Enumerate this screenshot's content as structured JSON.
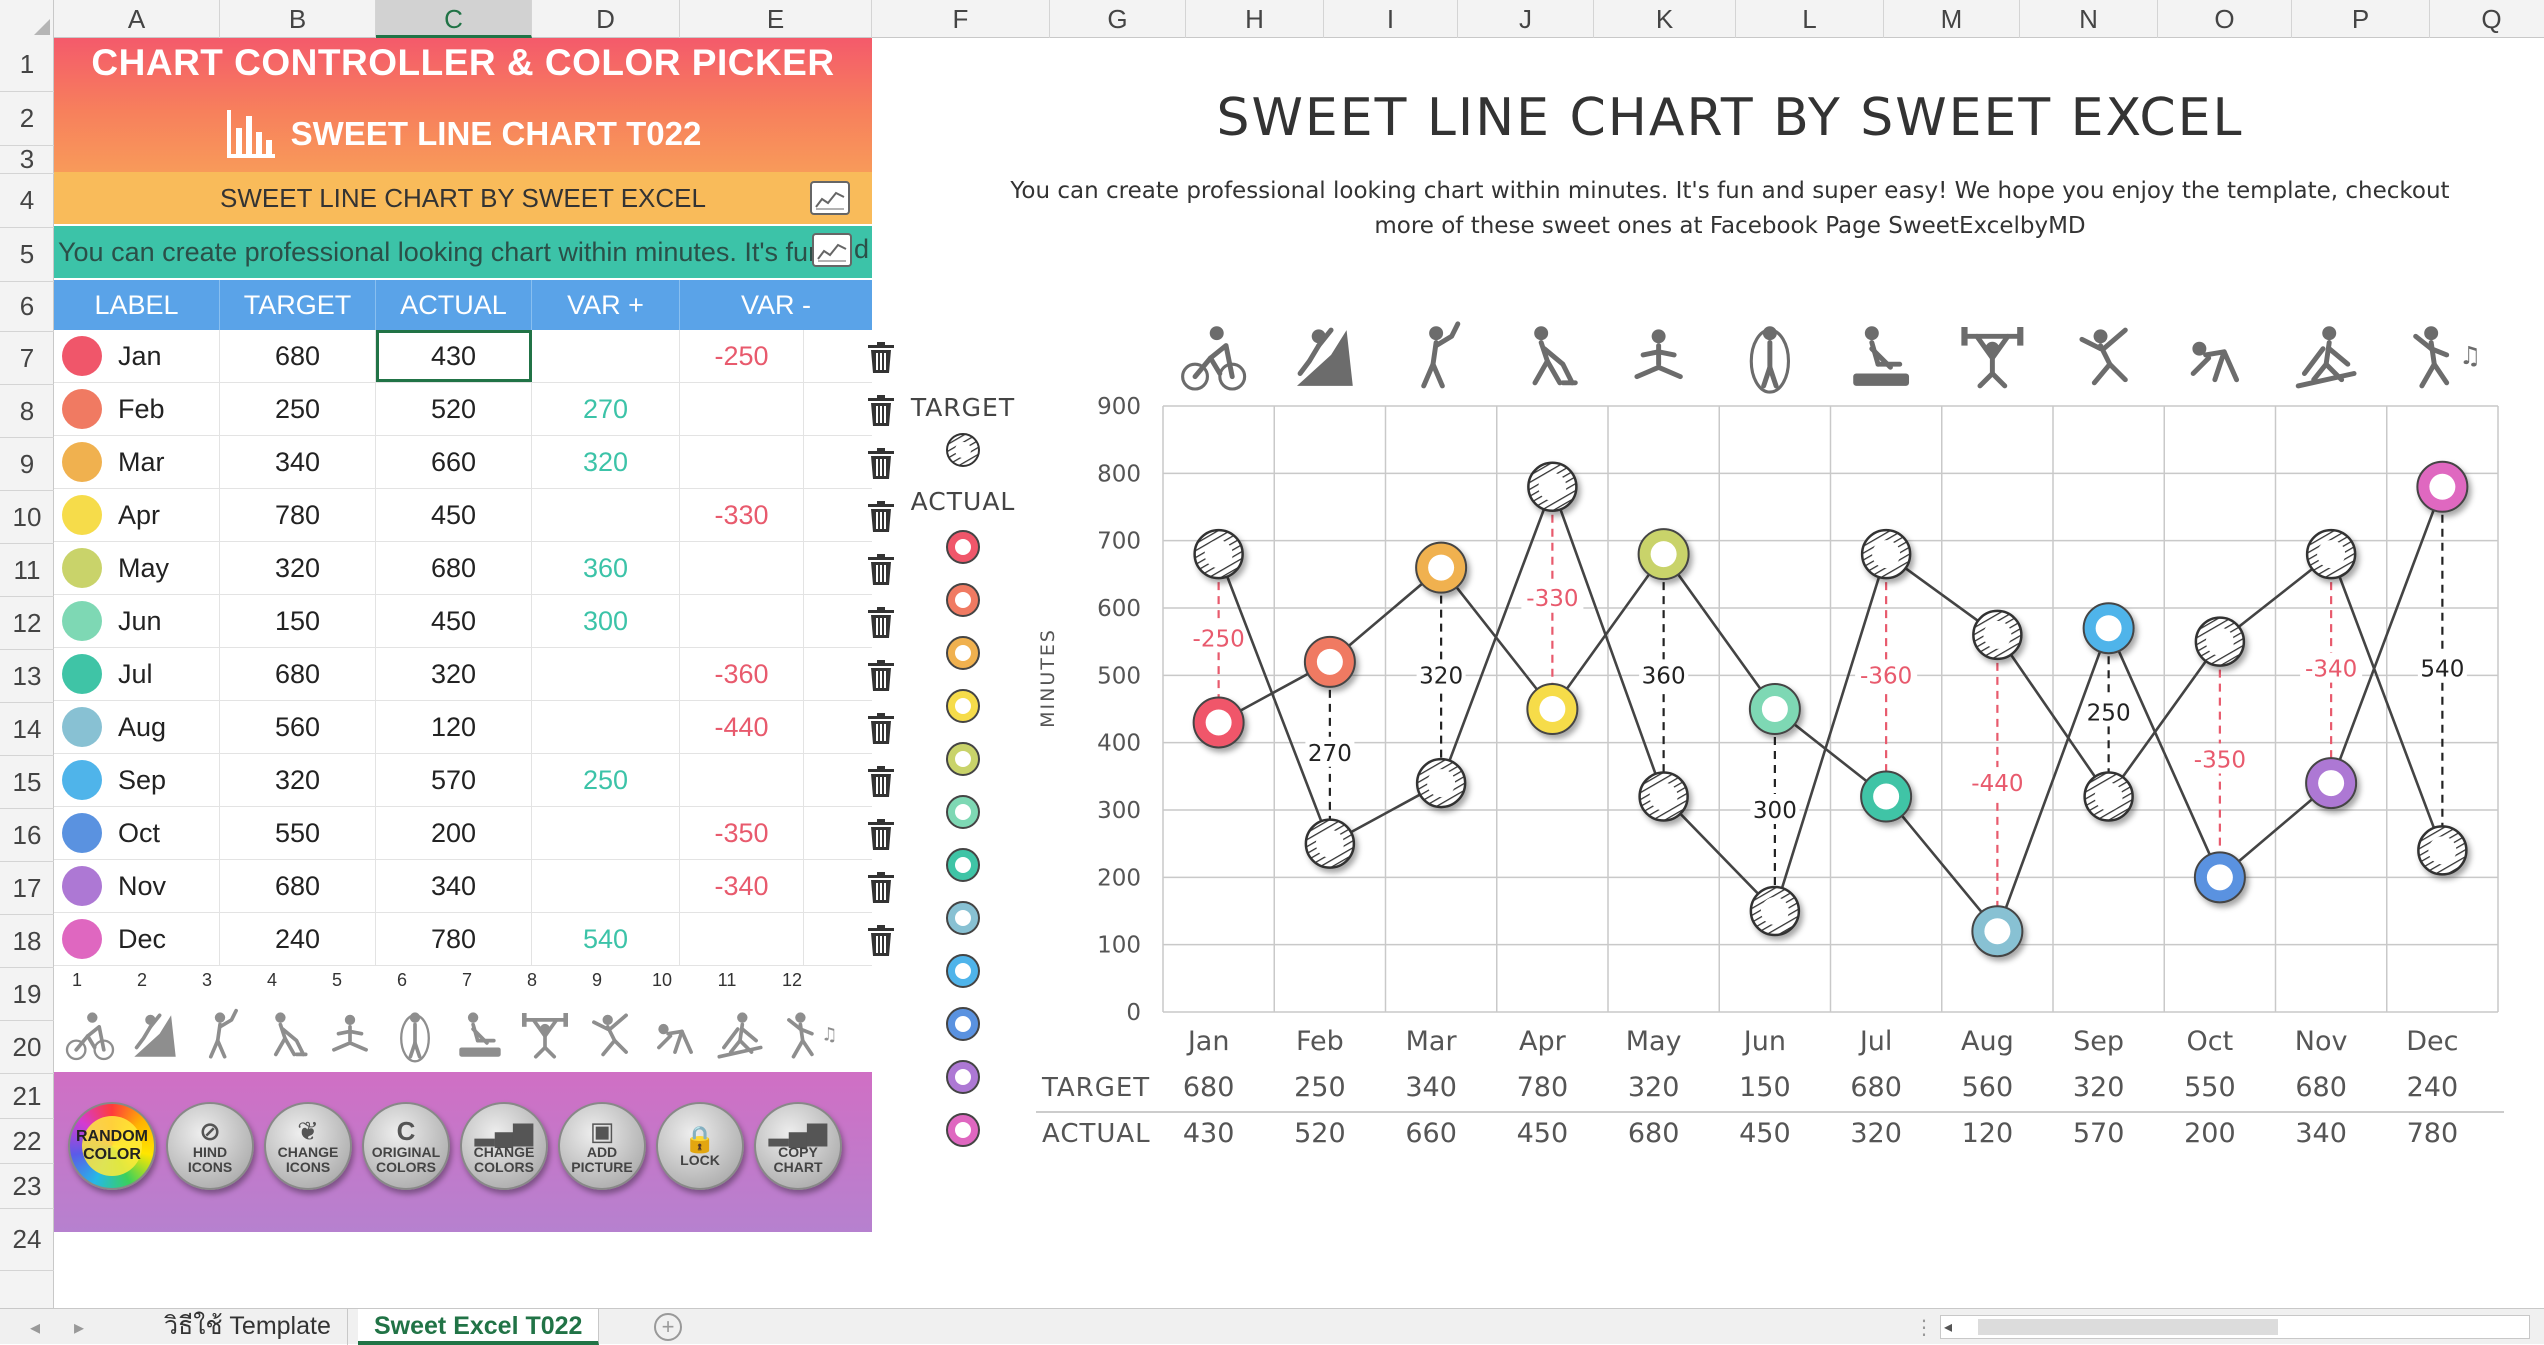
{
  "columns": [
    "A",
    "B",
    "C",
    "D",
    "E",
    "F",
    "G",
    "H",
    "I",
    "J",
    "K",
    "L",
    "M",
    "N",
    "O",
    "P",
    "Q"
  ],
  "selected_column": "C",
  "rows": [
    "1",
    "2",
    "3",
    "4",
    "5",
    "6",
    "7",
    "8",
    "9",
    "10",
    "11",
    "12",
    "13",
    "14",
    "15",
    "16",
    "17",
    "18",
    "19",
    "20",
    "21",
    "22",
    "23",
    "24"
  ],
  "controller": {
    "banner_title": "CHART CONTROLLER & COLOR PICKER",
    "banner_subtitle": "SWEET LINE CHART T022",
    "title_input": "SWEET LINE CHART BY SWEET EXCEL",
    "desc_input": "You can create professional looking chart within minutes. It's fun",
    "desc_tail": "d"
  },
  "table": {
    "headers": [
      "LABEL",
      "TARGET",
      "ACTUAL",
      "VAR +",
      "VAR -"
    ],
    "rows": [
      {
        "label": "Jan",
        "target": "680",
        "actual": "430",
        "var_pos": "",
        "var_neg": "-250",
        "color": "#f0566a"
      },
      {
        "label": "Feb",
        "target": "250",
        "actual": "520",
        "var_pos": "270",
        "var_neg": "",
        "color": "#f07a62"
      },
      {
        "label": "Mar",
        "target": "340",
        "actual": "660",
        "var_pos": "320",
        "var_neg": "",
        "color": "#f0b14f"
      },
      {
        "label": "Apr",
        "target": "780",
        "actual": "450",
        "var_pos": "",
        "var_neg": "-330",
        "color": "#f6dc4a"
      },
      {
        "label": "May",
        "target": "320",
        "actual": "680",
        "var_pos": "360",
        "var_neg": "",
        "color": "#c9d36a"
      },
      {
        "label": "Jun",
        "target": "150",
        "actual": "450",
        "var_pos": "300",
        "var_neg": "",
        "color": "#7ed8b4"
      },
      {
        "label": "Jul",
        "target": "680",
        "actual": "320",
        "var_pos": "",
        "var_neg": "-360",
        "color": "#3fc4a6"
      },
      {
        "label": "Aug",
        "target": "560",
        "actual": "120",
        "var_pos": "",
        "var_neg": "-440",
        "color": "#88c1d3"
      },
      {
        "label": "Sep",
        "target": "320",
        "actual": "570",
        "var_pos": "250",
        "var_neg": "",
        "color": "#4fb4ea"
      },
      {
        "label": "Oct",
        "target": "550",
        "actual": "200",
        "var_pos": "",
        "var_neg": "-350",
        "color": "#5a92e0"
      },
      {
        "label": "Nov",
        "target": "680",
        "actual": "340",
        "var_pos": "",
        "var_neg": "-340",
        "color": "#ad78d4"
      },
      {
        "label": "Dec",
        "target": "240",
        "actual": "780",
        "var_pos": "540",
        "var_neg": "",
        "color": "#df67c0"
      }
    ]
  },
  "icon_numbers": [
    "1",
    "2",
    "3",
    "4",
    "5",
    "6",
    "7",
    "8",
    "9",
    "10",
    "11",
    "12"
  ],
  "icons": [
    "cyclist-icon",
    "climber-icon",
    "golfer-icon",
    "hockey-icon",
    "meditation-icon",
    "jump-rope-icon",
    "cpr-icon",
    "weightlifter-icon",
    "baseball-icon",
    "sprinter-icon",
    "skier-icon",
    "dancer-icon"
  ],
  "buttons": [
    {
      "name": "random-color-button",
      "line1": "RANDOM",
      "line2": "COLOR",
      "glyph": ""
    },
    {
      "name": "hide-icons-button",
      "line1": "HIND",
      "line2": "ICONS",
      "glyph": "⊘"
    },
    {
      "name": "change-icons-button",
      "line1": "CHANGE",
      "line2": "ICONS",
      "glyph": "❦"
    },
    {
      "name": "original-colors-button",
      "line1": "ORIGINAL",
      "line2": "COLORS",
      "glyph": "C"
    },
    {
      "name": "change-colors-button",
      "line1": "CHANGE",
      "line2": "COLORS",
      "glyph": "▂▄▆"
    },
    {
      "name": "add-picture-button",
      "line1": "ADD",
      "line2": "PICTURE",
      "glyph": "▣"
    },
    {
      "name": "lock-button",
      "line1": "LOCK",
      "line2": "",
      "glyph": "🔒"
    },
    {
      "name": "copy-chart-button",
      "line1": "COPY",
      "line2": "CHART",
      "glyph": "▂▄▆"
    }
  ],
  "chart": {
    "title": "SWEET LINE CHART BY SWEET EXCEL",
    "subtitle_line1": "You can create professional looking chart within minutes. It's fun and super easy! We hope you enjoy the template, checkout",
    "subtitle_line2": "more of these sweet ones at Facebook Page SweetExcelbyMD",
    "legend_target": "TARGET",
    "legend_actual": "ACTUAL",
    "table_row_target": "TARGET",
    "table_row_actual": "ACTUAL"
  },
  "chart_data": {
    "type": "line",
    "title": "SWEET LINE CHART BY SWEET EXCEL",
    "ylabel": "MINUTES",
    "xlabel": "",
    "categories": [
      "Jan",
      "Feb",
      "Mar",
      "Apr",
      "May",
      "Jun",
      "Jul",
      "Aug",
      "Sep",
      "Oct",
      "Nov",
      "Dec"
    ],
    "series": [
      {
        "name": "TARGET",
        "values": [
          680,
          250,
          340,
          780,
          320,
          150,
          680,
          560,
          320,
          550,
          680,
          240
        ]
      },
      {
        "name": "ACTUAL",
        "values": [
          430,
          520,
          660,
          450,
          680,
          450,
          320,
          120,
          570,
          200,
          340,
          780
        ]
      }
    ],
    "variance_labels": [
      "-250",
      "270",
      "320",
      "-330",
      "360",
      "300",
      "-360",
      "-440",
      "250",
      "-350",
      "-340",
      "540"
    ],
    "ylim": [
      0,
      900
    ],
    "yticks": [
      0,
      100,
      200,
      300,
      400,
      500,
      600,
      700,
      800,
      900
    ],
    "grid": true,
    "legend": "left"
  },
  "sheet_tabs": [
    {
      "name": "sheet-tab-template",
      "label": "วิธีใช้ Template",
      "active": false
    },
    {
      "name": "sheet-tab-t022",
      "label": "Sweet Excel T022",
      "active": true
    }
  ],
  "colors": {
    "target_marker": "#ffffff",
    "line": "#444444",
    "negative": "#e85a6d",
    "positive_label": "#222222"
  }
}
